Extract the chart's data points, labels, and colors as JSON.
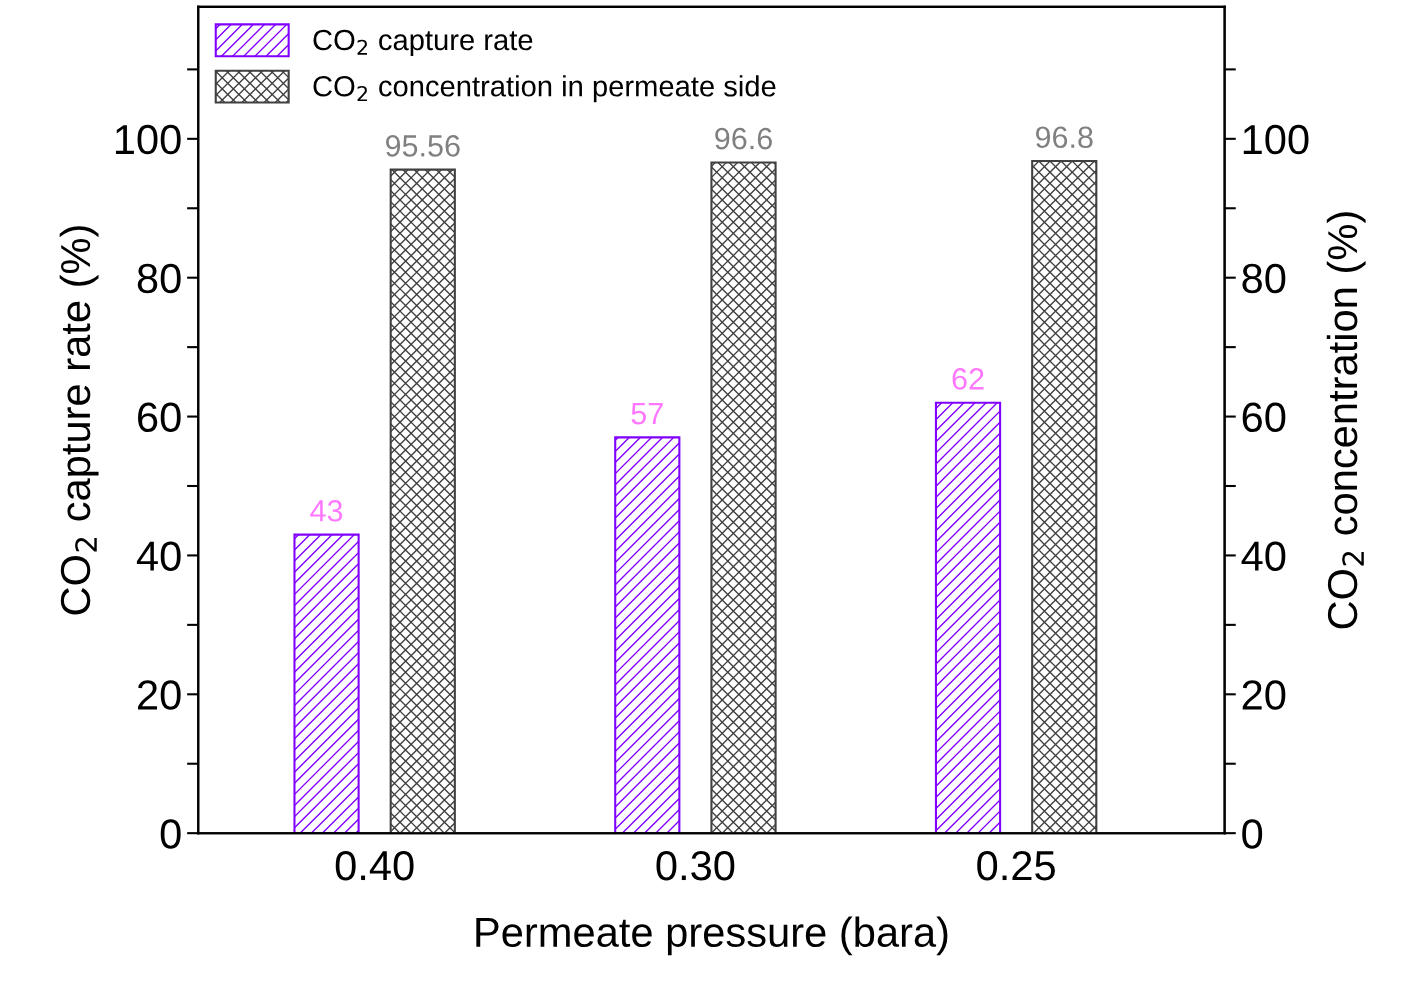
{
  "chart_data": {
    "type": "bar",
    "xlabel": "Permeate pressure (bara)",
    "ylabel": "CO$_{2}$ capture rate (%)",
    "y2label": "CO$_{2}$ concentration (%)",
    "categories": [
      "0.40",
      "0.30",
      "0.25"
    ],
    "series": [
      {
        "name": "CO$_{2}$ capture rate",
        "color": "#8000ff",
        "values": [
          43,
          57,
          62
        ]
      },
      {
        "name": "CO$_{2}$ concentration in permeate side",
        "color": "#404040",
        "axis": "y2",
        "values": [
          95.56,
          96.6,
          96.8
        ]
      }
    ],
    "ylim": [
      0,
      119
    ],
    "yticks": [
      0,
      {
        "value": 10,
        "label": null
      },
      20,
      {
        "value": 30,
        "label": null
      },
      40,
      {
        "value": 50,
        "label": null
      },
      60,
      {
        "value": 70,
        "label": null
      },
      80,
      {
        "value": 90,
        "label": null
      },
      100,
      {
        "value": 110,
        "label": null
      }
    ],
    "y2lim": [
      0,
      119
    ],
    "y2ticks": [
      0,
      {
        "value": 10,
        "label": null
      },
      20,
      {
        "value": 30,
        "label": null
      },
      40,
      {
        "value": 50,
        "label": null
      },
      60,
      {
        "value": 70,
        "label": null
      },
      80,
      {
        "value": 90,
        "label": null
      },
      100,
      {
        "value": 110,
        "label": null
      }
    ],
    "data_labels": true,
    "legend": "top left",
    "grid": false
  }
}
